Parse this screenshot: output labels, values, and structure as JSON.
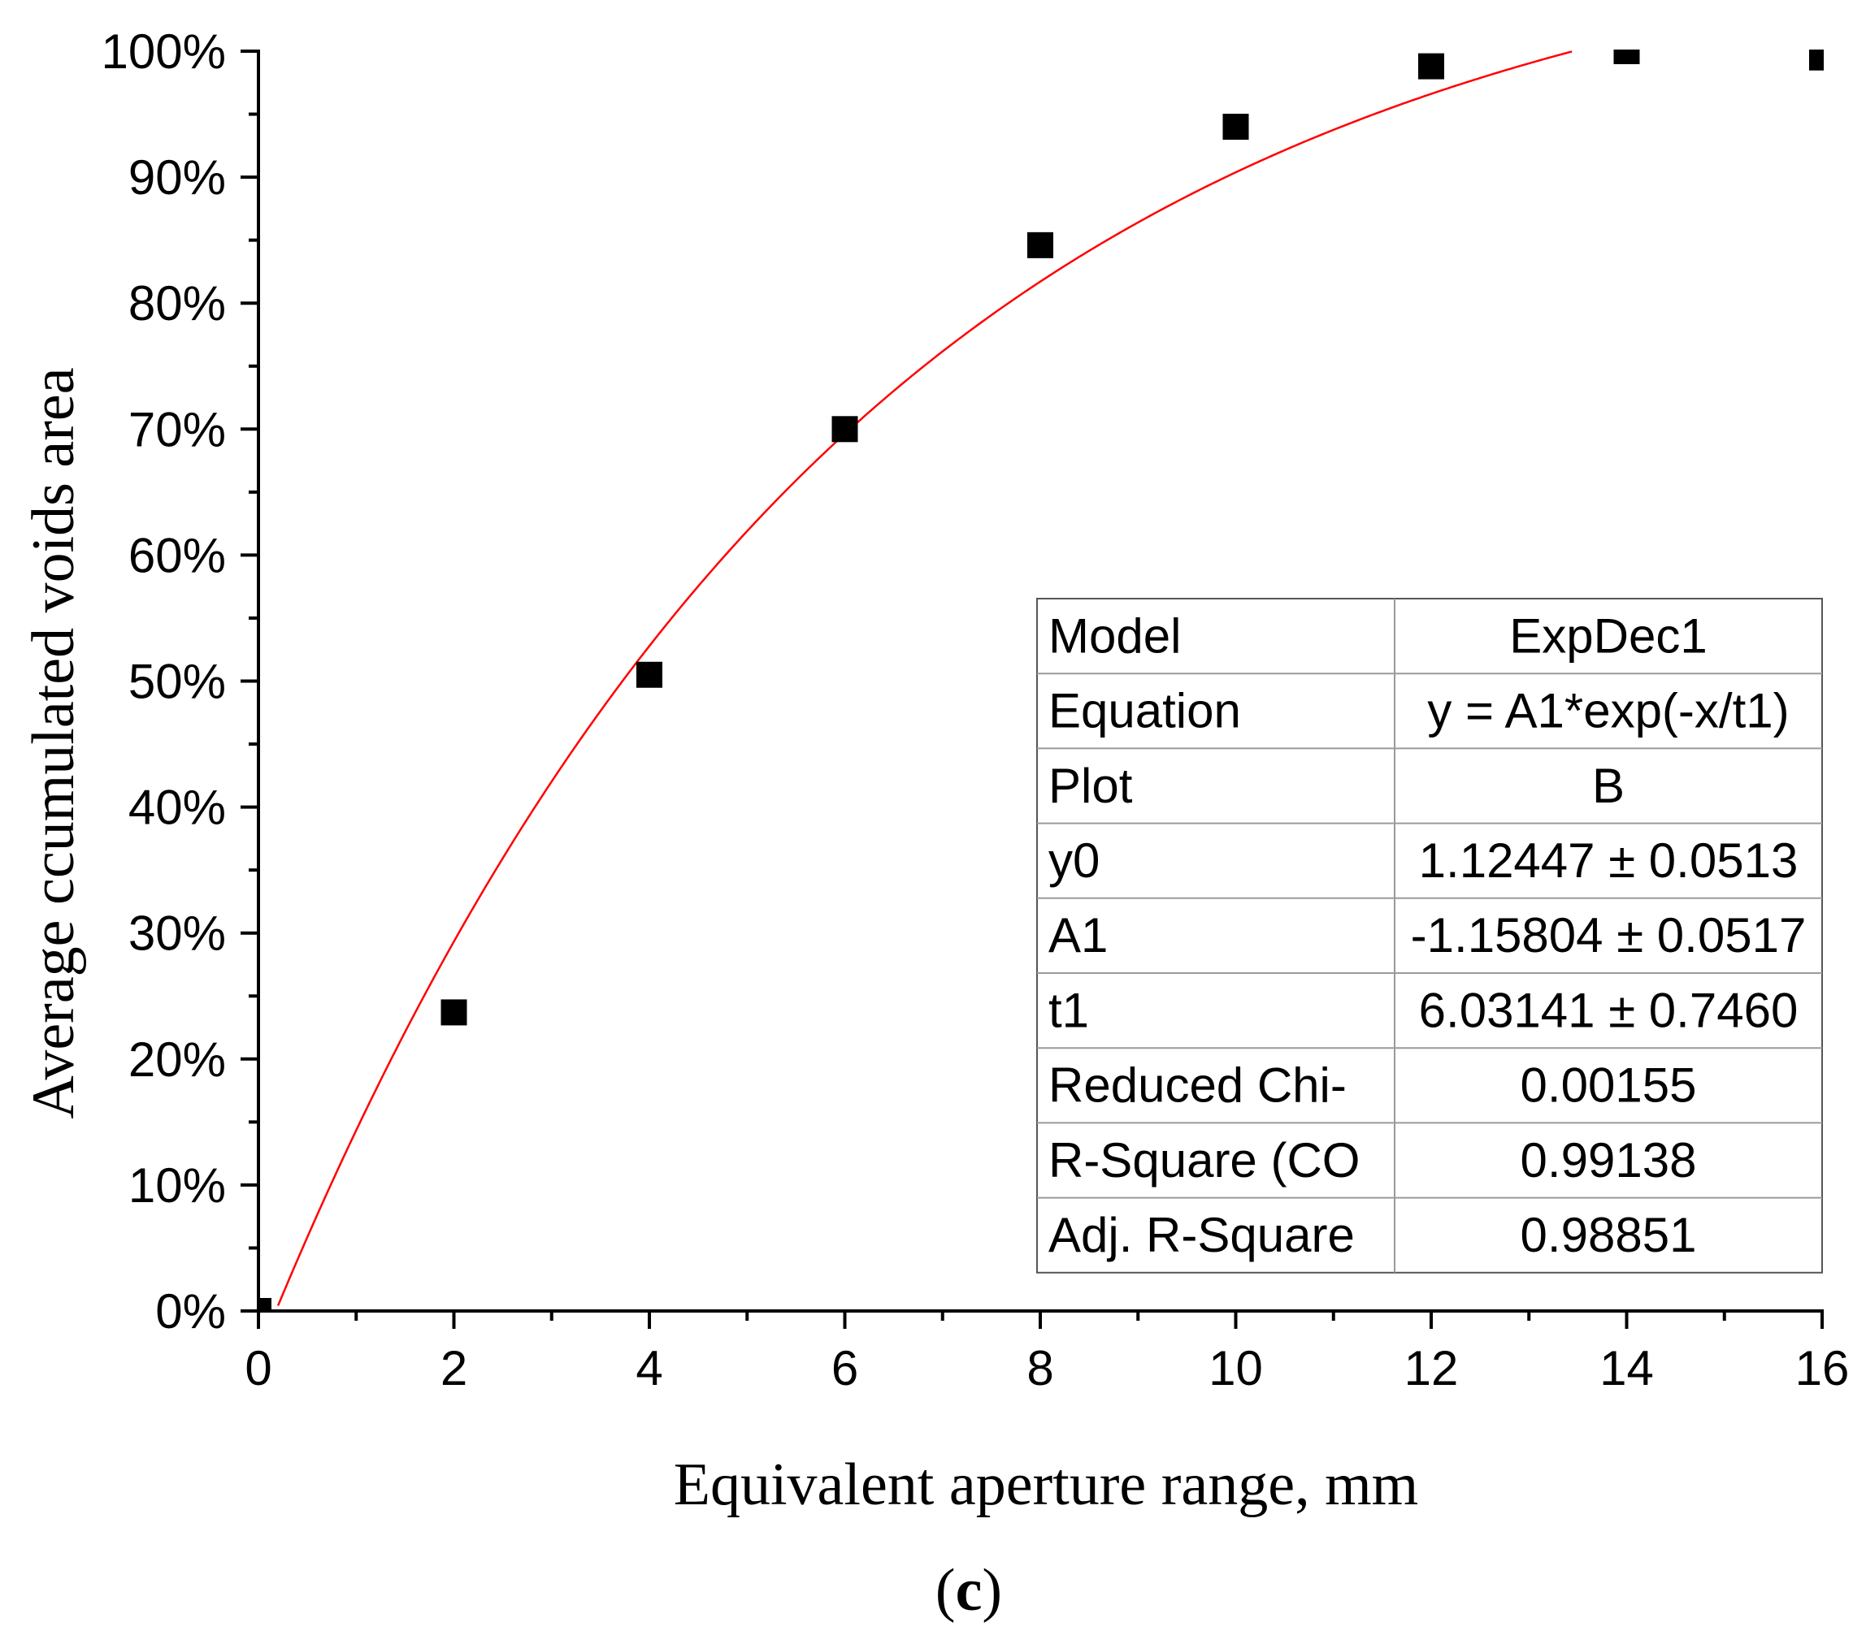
{
  "chart_data": {
    "type": "scatter",
    "title": "",
    "xlabel": "Equivalent aperture range, mm",
    "ylabel": "Average ccumulated voids area",
    "xlim": [
      0,
      16
    ],
    "ylim": [
      0,
      1
    ],
    "x_ticks": [
      0,
      2,
      4,
      6,
      8,
      10,
      12,
      14,
      16
    ],
    "x_tick_labels": [
      "0",
      "2",
      "4",
      "6",
      "8",
      "10",
      "12",
      "14",
      "16"
    ],
    "y_ticks": [
      0,
      0.1,
      0.2,
      0.3,
      0.4,
      0.5,
      0.6,
      0.7,
      0.8,
      0.9,
      1.0
    ],
    "y_tick_labels": [
      "0%",
      "10%",
      "20%",
      "30%",
      "40%",
      "50%",
      "60%",
      "70%",
      "80%",
      "90%",
      "100%"
    ],
    "series": [
      {
        "name": "B",
        "marker": "square",
        "color": "#000000",
        "x": [
          0,
          2,
          4,
          6,
          8,
          10,
          12,
          14,
          16
        ],
        "y": [
          0.0,
          0.237,
          0.505,
          0.7,
          0.846,
          0.94,
          0.988,
          1.0,
          0.995
        ]
      }
    ],
    "fit": {
      "model": "ExpDec1",
      "color": "#ff0000",
      "y0": 1.12447,
      "A1": -1.15804,
      "t1": 6.03141
    },
    "panel_label": "(c)"
  },
  "stats_table": {
    "rows": [
      {
        "label": "Model",
        "value": "ExpDec1"
      },
      {
        "label": "Equation",
        "value": "y = A1*exp(-x/t1)"
      },
      {
        "label": "Plot",
        "value": "B"
      },
      {
        "label": "y0",
        "value": "1.12447 ± 0.0513"
      },
      {
        "label": "A1",
        "value": "-1.15804 ± 0.0517"
      },
      {
        "label": "t1",
        "value": "6.03141 ± 0.7460"
      },
      {
        "label": "Reduced Chi-",
        "value": "0.00155"
      },
      {
        "label": "R-Square (CO",
        "value": "0.99138"
      },
      {
        "label": "Adj. R-Square",
        "value": "0.98851"
      }
    ]
  },
  "panel": {
    "open": "(",
    "letter": "c",
    "close": ")"
  }
}
